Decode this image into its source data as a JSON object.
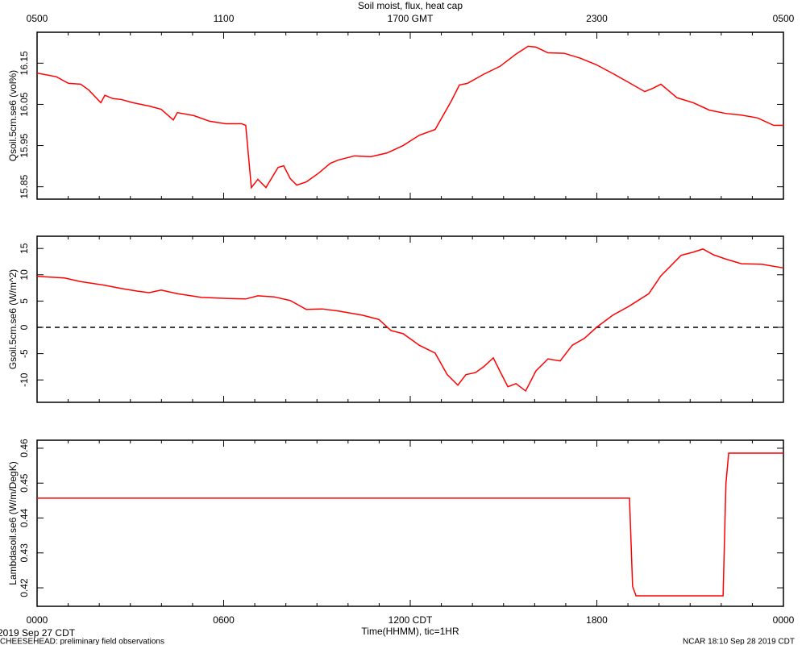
{
  "chart_data": [
    {
      "type": "line",
      "title": "Soil moist, flux, heat cap",
      "ylabel": "Qsoil.5cm.se6 (vol%)",
      "xlim": [
        0,
        24
      ],
      "ylim": [
        15.82,
        16.225
      ],
      "yticks": [
        15.85,
        15.95,
        16.05,
        16.15
      ],
      "x2ticks": [
        {
          "value": 0,
          "label": "0500"
        },
        {
          "value": 6,
          "label": "1100"
        },
        {
          "value": 12,
          "label": "1700 GMT"
        },
        {
          "value": 18,
          "label": "2300"
        },
        {
          "value": 24,
          "label": "0500"
        }
      ],
      "x": [
        0,
        0.62,
        1.01,
        1.4,
        1.66,
        2.05,
        2.18,
        2.44,
        2.7,
        3.08,
        3.6,
        3.99,
        4.38,
        4.51,
        5.03,
        5.55,
        6.07,
        6.58,
        6.71,
        6.89,
        7.1,
        7.36,
        7.75,
        7.93,
        8.14,
        8.35,
        8.66,
        9.05,
        9.43,
        9.69,
        10.21,
        10.73,
        11.25,
        11.77,
        12.29,
        12.8,
        13.32,
        13.58,
        13.84,
        14.36,
        14.88,
        15.4,
        15.79,
        16.04,
        16.43,
        16.95,
        17.47,
        17.99,
        18.51,
        19.03,
        19.54,
        19.8,
        20.06,
        20.58,
        21.1,
        21.62,
        22.14,
        22.65,
        23.17,
        23.69,
        24
      ],
      "series": [
        {
          "color": "#ff0000",
          "values": [
            16.126,
            16.117,
            16.101,
            16.099,
            16.085,
            16.054,
            16.072,
            16.064,
            16.062,
            16.054,
            16.046,
            16.038,
            16.012,
            16.03,
            16.023,
            16.009,
            16.003,
            16.003,
            15.999,
            15.848,
            15.868,
            15.848,
            15.897,
            15.901,
            15.87,
            15.854,
            15.862,
            15.883,
            15.907,
            15.915,
            15.925,
            15.923,
            15.932,
            15.95,
            15.975,
            15.989,
            16.058,
            16.097,
            16.101,
            16.123,
            16.142,
            16.172,
            16.191,
            16.189,
            16.175,
            16.174,
            16.162,
            16.146,
            16.125,
            16.103,
            16.081,
            16.089,
            16.099,
            16.066,
            16.054,
            16.036,
            16.028,
            16.024,
            16.017,
            15.999,
            15.999
          ]
        }
      ]
    },
    {
      "type": "line",
      "ylabel": "Gsoil.5cm.se6 (W/m^2)",
      "xlim": [
        0,
        24
      ],
      "ylim": [
        -14.26,
        17.33
      ],
      "yticks": [
        -10,
        -5,
        0,
        5,
        10,
        15
      ],
      "hline": 0,
      "x": [
        0,
        0.88,
        1.4,
        2.18,
        2.7,
        3.21,
        3.6,
        3.99,
        4.51,
        5.29,
        6.07,
        6.71,
        7.1,
        7.62,
        8.14,
        8.66,
        9.17,
        9.69,
        10.47,
        10.99,
        11.38,
        11.77,
        12.29,
        12.8,
        13.19,
        13.53,
        13.79,
        14.1,
        14.36,
        14.67,
        14.88,
        15.14,
        15.4,
        15.71,
        16.04,
        16.43,
        16.82,
        17.21,
        17.6,
        17.99,
        18.51,
        19.03,
        19.67,
        20.06,
        20.71,
        21.1,
        21.41,
        21.75,
        22.14,
        22.65,
        23.3,
        24
      ],
      "series": [
        {
          "color": "#ff0000",
          "values": [
            9.7,
            9.4,
            8.7,
            8.0,
            7.4,
            6.9,
            6.6,
            7.1,
            6.4,
            5.7,
            5.5,
            5.4,
            6.0,
            5.8,
            5.1,
            3.4,
            3.5,
            3.1,
            2.3,
            1.5,
            -0.6,
            -1.2,
            -3.4,
            -4.9,
            -9.0,
            -11.0,
            -9.0,
            -8.6,
            -7.5,
            -5.8,
            -8.3,
            -11.3,
            -10.7,
            -12.1,
            -8.3,
            -6.0,
            -6.4,
            -3.4,
            -2.1,
            0,
            2.3,
            4.0,
            6.4,
            9.8,
            13.7,
            14.3,
            14.9,
            13.8,
            13.0,
            12.1,
            12.0,
            11.3
          ]
        }
      ]
    },
    {
      "type": "line",
      "ylabel": "Lambdasoil.se6 (W/m/DegK)",
      "xlabel": "Time(HHMM), tic=1HR",
      "xlim": [
        0,
        24
      ],
      "ylim": [
        0.4147,
        0.4623
      ],
      "yticks": [
        0.42,
        0.43,
        0.44,
        0.45,
        0.46
      ],
      "xticks": [
        {
          "value": 0,
          "label": "0000"
        },
        {
          "value": 6,
          "label": "0600"
        },
        {
          "value": 12,
          "label": "1200 CDT"
        },
        {
          "value": 18,
          "label": "1800"
        },
        {
          "value": 24,
          "label": "0000"
        }
      ],
      "xminorticks": [
        1,
        2,
        3,
        4,
        5,
        7,
        8,
        9,
        10,
        11,
        13,
        14,
        15,
        16,
        17,
        19,
        20,
        21,
        22,
        23
      ],
      "annotations": [
        "2019 Sep 27 CDT",
        "CHEESEHEAD: preliminary field observations",
        "NCAR 18:10 Sep 28 2019 CDT"
      ],
      "x": [
        0,
        19.05,
        19.15,
        19.26,
        22.06,
        22.15,
        22.24,
        24
      ],
      "series": [
        {
          "color": "#ff0000",
          "values": [
            0.4457,
            0.4457,
            0.4204,
            0.4177,
            0.4177,
            0.4498,
            0.4586,
            0.4586
          ]
        }
      ]
    }
  ]
}
